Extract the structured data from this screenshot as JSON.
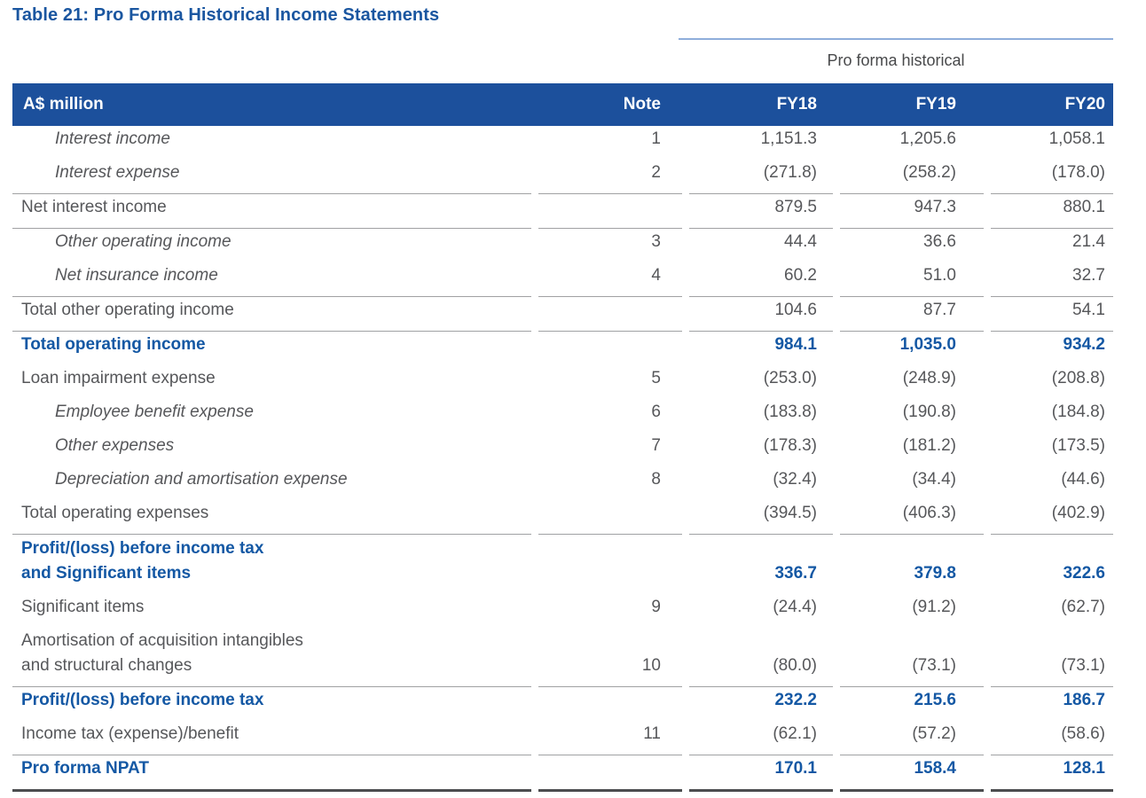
{
  "title": "Table 21: Pro Forma Historical Income Statements",
  "colors": {
    "header_bg": "#1C509C",
    "header_text": "#FFFFFF",
    "title_text": "#1A56A0",
    "emphasis_text": "#1458A4",
    "body_text": "#56575A",
    "group_header_text": "#48494B",
    "rule_thin": "#A0A1A3",
    "rule_thick": "#4C4D4F",
    "group_rule": "#8FAEDB",
    "page_bg": "#FFFFFF"
  },
  "table": {
    "group_header": "Pro forma historical",
    "columns": [
      "A$ million",
      "Note",
      "FY18",
      "FY19",
      "FY20"
    ],
    "rows": [
      {
        "label": "Interest income",
        "style": "detail",
        "note": "1",
        "fy18": "1,151.3",
        "fy19": "1,205.6",
        "fy20": "1,058.1",
        "rule": "none"
      },
      {
        "label": "Interest expense",
        "style": "detail",
        "note": "2",
        "fy18": "(271.8)",
        "fy19": "(258.2)",
        "fy20": "(178.0)",
        "rule": "thin"
      },
      {
        "label": "Net interest income",
        "style": "plain",
        "note": "",
        "fy18": "879.5",
        "fy19": "947.3",
        "fy20": "880.1",
        "rule": "thin"
      },
      {
        "label": "Other operating income",
        "style": "detail",
        "note": "3",
        "fy18": "44.4",
        "fy19": "36.6",
        "fy20": "21.4",
        "rule": "none"
      },
      {
        "label": "Net insurance income",
        "style": "detail",
        "note": "4",
        "fy18": "60.2",
        "fy19": "51.0",
        "fy20": "32.7",
        "rule": "thin"
      },
      {
        "label": "Total other operating income",
        "style": "plain",
        "note": "",
        "fy18": "104.6",
        "fy19": "87.7",
        "fy20": "54.1",
        "rule": "thin"
      },
      {
        "label": "Total operating income",
        "style": "total",
        "note": "",
        "fy18": "984.1",
        "fy19": "1,035.0",
        "fy20": "934.2",
        "rule": "none"
      },
      {
        "label": "Loan impairment expense",
        "style": "plain",
        "note": "5",
        "fy18": "(253.0)",
        "fy19": "(248.9)",
        "fy20": "(208.8)",
        "rule": "none"
      },
      {
        "label": "Employee benefit expense",
        "style": "detail",
        "note": "6",
        "fy18": "(183.8)",
        "fy19": "(190.8)",
        "fy20": "(184.8)",
        "rule": "none"
      },
      {
        "label": "Other expenses",
        "style": "detail",
        "note": "7",
        "fy18": "(178.3)",
        "fy19": "(181.2)",
        "fy20": "(173.5)",
        "rule": "none"
      },
      {
        "label": "Depreciation and amortisation expense",
        "style": "detail",
        "note": "8",
        "fy18": "(32.4)",
        "fy19": "(34.4)",
        "fy20": "(44.6)",
        "rule": "none"
      },
      {
        "label": "Total operating expenses",
        "style": "plain",
        "note": "",
        "fy18": "(394.5)",
        "fy19": "(406.3)",
        "fy20": "(402.9)",
        "rule": "thin"
      },
      {
        "label": "Profit/(loss) before income tax\nand Significant items",
        "style": "total",
        "two_line": true,
        "note": "",
        "fy18": "336.7",
        "fy19": "379.8",
        "fy20": "322.6",
        "rule": "none"
      },
      {
        "label": "Significant items",
        "style": "plain",
        "note": "9",
        "fy18": "(24.4)",
        "fy19": "(91.2)",
        "fy20": "(62.7)",
        "rule": "none"
      },
      {
        "label": "Amortisation of acquisition intangibles\nand structural changes",
        "style": "plain",
        "two_line": true,
        "note": "10",
        "fy18": "(80.0)",
        "fy19": "(73.1)",
        "fy20": "(73.1)",
        "rule": "thin"
      },
      {
        "label": "Profit/(loss) before income tax",
        "style": "total",
        "note": "",
        "fy18": "232.2",
        "fy19": "215.6",
        "fy20": "186.7",
        "rule": "none"
      },
      {
        "label": "Income tax (expense)/benefit",
        "style": "plain",
        "note": "11",
        "fy18": "(62.1)",
        "fy19": "(57.2)",
        "fy20": "(58.6)",
        "rule": "thin"
      },
      {
        "label": "Pro forma NPAT",
        "style": "total",
        "note": "",
        "fy18": "170.1",
        "fy19": "158.4",
        "fy20": "128.1",
        "rule": "thick"
      }
    ]
  }
}
